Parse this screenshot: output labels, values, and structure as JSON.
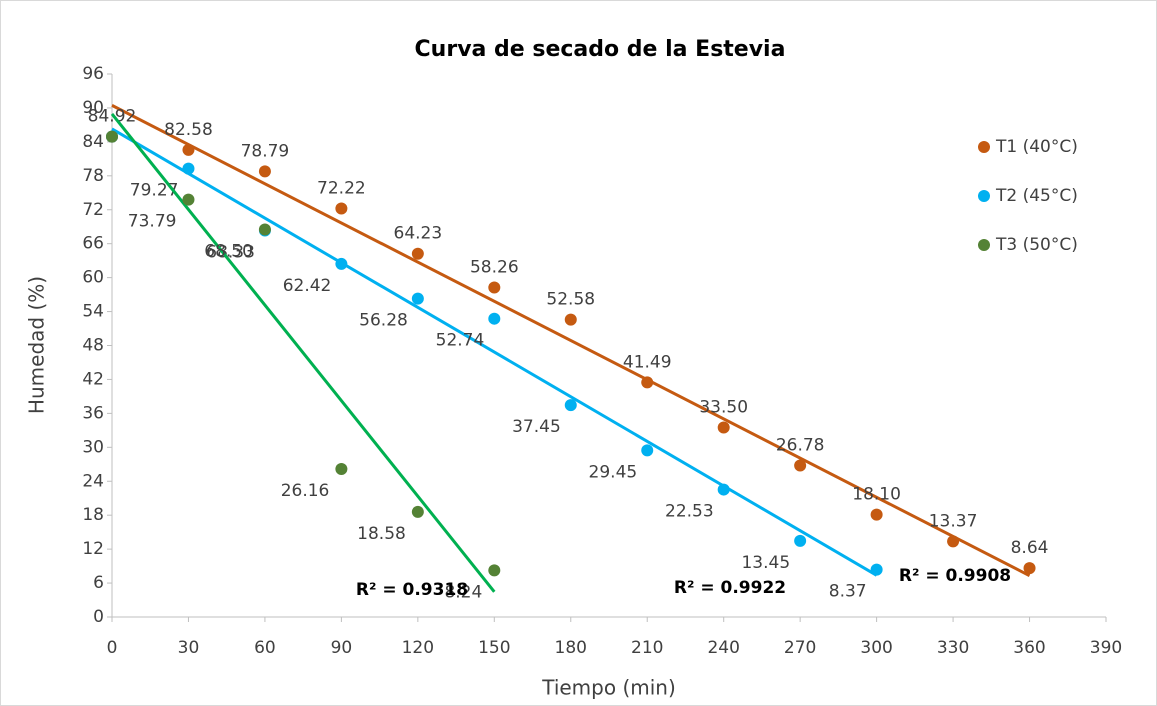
{
  "chart_data": {
    "type": "scatter",
    "title": "Curva de secado de la Estevia",
    "xlabel": "Tiempo (min)",
    "ylabel": "Humedad (%)",
    "xlim": [
      0,
      390
    ],
    "xticks": [
      0,
      30,
      60,
      90,
      120,
      150,
      180,
      210,
      240,
      270,
      300,
      330,
      360,
      390
    ],
    "ylim": [
      0,
      96
    ],
    "yticks": [
      0,
      6,
      12,
      18,
      24,
      30,
      36,
      42,
      48,
      54,
      60,
      66,
      72,
      78,
      84,
      90,
      96
    ],
    "legend": "right",
    "trendline": "linear",
    "series": [
      {
        "name": "T1 (40°C)",
        "color": "#c55a11",
        "trendline_color": "#c55a11",
        "r2_label": "R² = 0.9908",
        "x": [
          0,
          30,
          60,
          90,
          120,
          150,
          180,
          210,
          240,
          270,
          300,
          330,
          360
        ],
        "values": [
          84.92,
          82.58,
          78.79,
          72.22,
          64.23,
          58.26,
          52.58,
          41.49,
          33.5,
          26.78,
          18.1,
          13.37,
          8.64
        ],
        "value_labels": [
          "84.92",
          "82.58",
          "78.79",
          "72.22",
          "64.23",
          "58.26",
          "52.58",
          "41.49",
          "33.50",
          "26.78",
          "18.10",
          "13.37",
          "8.64"
        ]
      },
      {
        "name": "T2 (45°C)",
        "color": "#00b0f0",
        "trendline_color": "#00b0f0",
        "r2_label": "R² = 0.9922",
        "x": [
          0,
          30,
          60,
          90,
          120,
          150,
          180,
          210,
          240,
          270,
          300
        ],
        "values": [
          84.92,
          79.27,
          68.33,
          62.42,
          56.28,
          52.74,
          37.45,
          29.45,
          22.53,
          13.45,
          8.37
        ],
        "value_labels": [
          null,
          "79.27",
          "68.33",
          "62.42",
          "56.28",
          "52.74",
          "37.45",
          "29.45",
          "22.53",
          "13.45",
          "8.37"
        ]
      },
      {
        "name": "T3 (50°C)",
        "color": "#548235",
        "trendline_color": "#00b050",
        "r2_label": "R² = 0.9318",
        "x": [
          0,
          30,
          60,
          90,
          120,
          150
        ],
        "values": [
          84.92,
          73.79,
          68.5,
          26.16,
          18.58,
          8.24
        ],
        "value_labels": [
          null,
          "73.79",
          "68.50",
          "26.16",
          "18.58",
          "8.24"
        ]
      }
    ]
  }
}
